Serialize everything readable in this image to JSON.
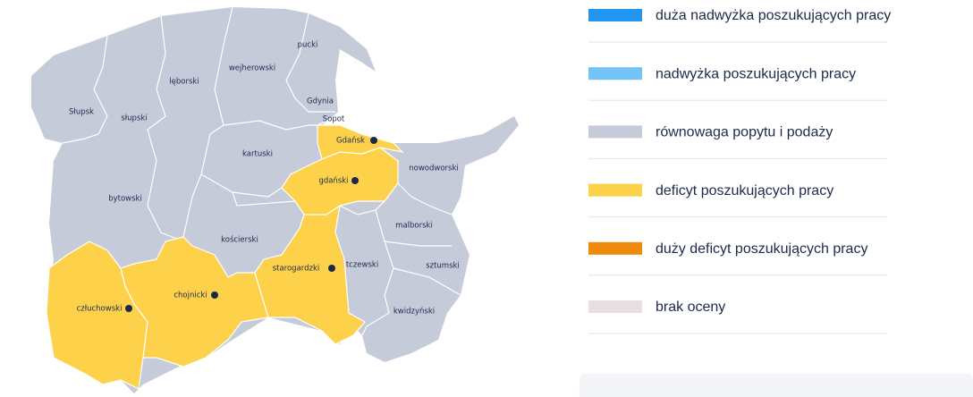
{
  "map": {
    "regions": [
      {
        "label": "Słupsk"
      },
      {
        "label": "słupski"
      },
      {
        "label": "lęborski"
      },
      {
        "label": "wejherowski"
      },
      {
        "label": "pucki"
      },
      {
        "label": "Gdynia"
      },
      {
        "label": "Sopot"
      },
      {
        "label": "Gdańsk"
      },
      {
        "label": "gdański"
      },
      {
        "label": "kartuski"
      },
      {
        "label": "nowodworski"
      },
      {
        "label": "bytowski"
      },
      {
        "label": "kościerski"
      },
      {
        "label": "malborski"
      },
      {
        "label": "starogardzki"
      },
      {
        "label": "tczewski"
      },
      {
        "label": "sztumski"
      },
      {
        "label": "człuchowski"
      },
      {
        "label": "chojnicki"
      },
      {
        "label": "kwidzyński"
      }
    ]
  },
  "legend": {
    "items": [
      {
        "label": "duża nadwyżka poszukujących pracy",
        "color": "#2196f3"
      },
      {
        "label": "nadwyżka poszukujących pracy",
        "color": "#74c3f7"
      },
      {
        "label": "równowaga popytu i podaży",
        "color": "#c5cbd9"
      },
      {
        "label": "deficyt poszukujących pracy",
        "color": "#fdd14a"
      },
      {
        "label": "duży deficyt poszukujących pracy",
        "color": "#ef8a0c"
      },
      {
        "label": "brak oceny",
        "color": "#e8e0e0"
      }
    ]
  }
}
